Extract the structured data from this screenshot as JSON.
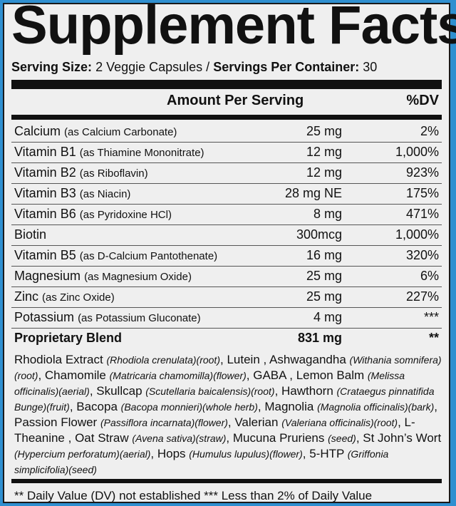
{
  "title": "Supplement Facts",
  "serving": {
    "size_label": "Serving Size:",
    "size_value": "2 Veggie Capsules /",
    "per_container_label": "Servings Per Container:",
    "per_container_value": "30"
  },
  "header": {
    "amount": "Amount Per Serving",
    "dv": "%DV"
  },
  "rows": [
    {
      "name": "Calcium",
      "source": "(as Calcium Carbonate)",
      "amount": "25 mg",
      "dv": "2%"
    },
    {
      "name": "Vitamin B1",
      "source": "(as Thiamine Mononitrate)",
      "amount": "12 mg",
      "dv": "1,000%"
    },
    {
      "name": "Vitamin B2",
      "source": "(as Riboflavin)",
      "amount": "12 mg",
      "dv": "923%"
    },
    {
      "name": "Vitamin B3",
      "source": "(as Niacin)",
      "amount": "28 mg NE",
      "dv": "175%"
    },
    {
      "name": "Vitamin B6",
      "source": "(as Pyridoxine HCl)",
      "amount": "8 mg",
      "dv": "471%"
    },
    {
      "name": "Biotin",
      "source": "",
      "amount": "300mcg",
      "dv": "1,000%"
    },
    {
      "name": "Vitamin B5",
      "source": "(as D-Calcium Pantothenate)",
      "amount": "16 mg",
      "dv": "320%"
    },
    {
      "name": "Magnesium",
      "source": "(as Magnesium Oxide)",
      "amount": "25 mg",
      "dv": "6%"
    },
    {
      "name": "Zinc",
      "source": "(as Zinc Oxide)",
      "amount": "25 mg",
      "dv": "227%"
    },
    {
      "name": "Potassium",
      "source": "(as Potassium Gluconate)",
      "amount": "4 mg",
      "dv": "***"
    }
  ],
  "blend": {
    "name": "Proprietary Blend",
    "amount": "831 mg",
    "dv": "**"
  },
  "ingredients": [
    {
      "n": "Rhodiola Extract",
      "s": "(Rhodiola crenulata)(root)"
    },
    {
      "n": "Lutein",
      "s": ""
    },
    {
      "n": "Ashwagandha",
      "s": "(Withania somnifera)(root)"
    },
    {
      "n": "Chamomile",
      "s": "(Matricaria chamomilla)(flower)"
    },
    {
      "n": "GABA",
      "s": ""
    },
    {
      "n": "Lemon Balm",
      "s": "(Melissa officinalis)(aerial)"
    },
    {
      "n": "Skullcap",
      "s": "(Scutellaria baicalensis)(root)"
    },
    {
      "n": "Hawthorn",
      "s": "(Crataegus pinnatifida Bunge)(fruit)"
    },
    {
      "n": "Bacopa",
      "s": "(Bacopa monnieri)(whole herb)"
    },
    {
      "n": "Magnolia",
      "s": "(Magnolia officinalis)(bark)"
    },
    {
      "n": "Passion Flower",
      "s": "(Passiflora incarnata)(flower)"
    },
    {
      "n": "Valerian",
      "s": "(Valeriana officinalis)(root)"
    },
    {
      "n": "L-Theanine",
      "s": ""
    },
    {
      "n": "Oat Straw",
      "s": "(Avena sativa)(straw)"
    },
    {
      "n": "Mucuna Pruriens",
      "s": "(seed)"
    },
    {
      "n": "St John’s Wort",
      "s": "(Hypercium perforatum)(aerial)"
    },
    {
      "n": "Hops",
      "s": "(Humulus lupulus)(flower)"
    },
    {
      "n": "5-HTP",
      "s": "(Griffonia simplicifolia)(seed)"
    }
  ],
  "footnote": "** Daily Value (DV) not established  *** Less than 2% of Daily Value"
}
